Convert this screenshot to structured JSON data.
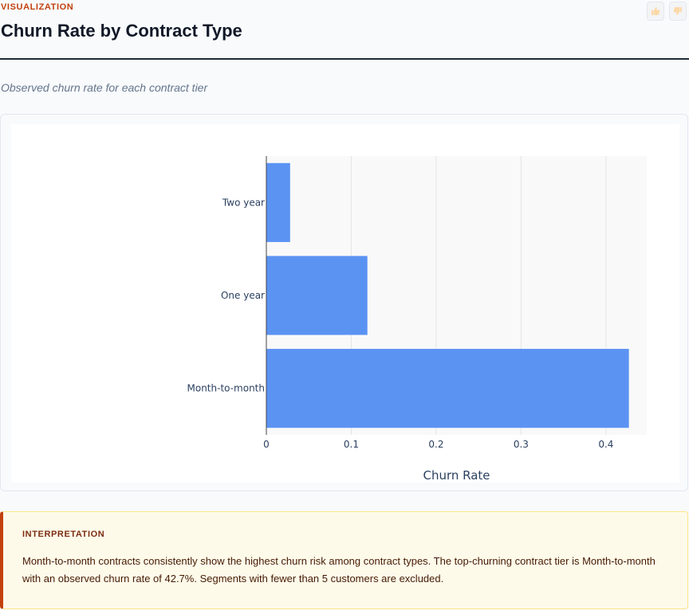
{
  "header": {
    "eyebrow": "VISUALIZATION",
    "title": "Churn Rate by Contract Type"
  },
  "subtitle": "Observed churn rate for each contract tier",
  "feedback": {
    "up_icon": "thumbs-up-icon",
    "down_icon": "thumbs-down-icon"
  },
  "chart_data": {
    "type": "bar",
    "orientation": "horizontal",
    "categories": [
      "Month-to-month",
      "One year",
      "Two year"
    ],
    "values": [
      0.427,
      0.119,
      0.028
    ],
    "xlabel": "Churn Rate",
    "ylabel": "",
    "xlim": [
      0,
      0.448
    ],
    "xticks": [
      "0",
      "0.1",
      "0.2",
      "0.3",
      "0.4"
    ],
    "grid": true,
    "bar_color": "#5b93f3",
    "plot_background": "#f9f9f9"
  },
  "interpretation": {
    "label": "INTERPRETATION",
    "text": "Month-to-month contracts consistently show the highest churn risk among contract types. The top-churning contract tier is Month-to-month with an observed churn rate of 42.7%. Segments with fewer than 5 customers are excluded."
  },
  "colors": {
    "accent": "#c2410c",
    "title": "#111827",
    "interp_background": "#fefaea"
  }
}
